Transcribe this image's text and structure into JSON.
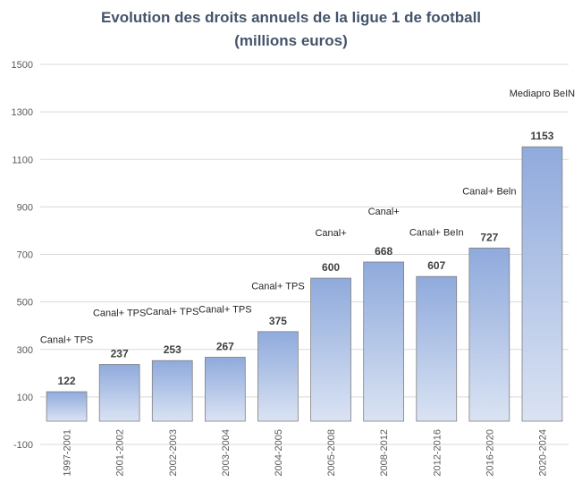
{
  "chart_data": {
    "type": "bar",
    "title_line1": "Evolution des droits annuels de la ligue 1 de football",
    "title_line2": "(millions euros)",
    "categories": [
      "1997-2001",
      "2001-2002",
      "2002-2003",
      "2003-2004",
      "2004-2005",
      "2005-2008",
      "2008-2012",
      "2012-2016",
      "2016-2020",
      "2020-2024"
    ],
    "values": [
      122,
      237,
      253,
      267,
      375,
      600,
      668,
      607,
      727,
      1153
    ],
    "data_labels": [
      "122",
      "237",
      "253",
      "267",
      "375",
      "600",
      "668",
      "607",
      "727",
      "1153"
    ],
    "annotations": [
      {
        "category": "1997-2001",
        "text": "Canal+ TPS",
        "value": 327
      },
      {
        "category": "2001-2002",
        "text": "Canal+ TPS",
        "value": 440
      },
      {
        "category": "2002-2003",
        "text": "Canal+ TPS",
        "value": 446
      },
      {
        "category": "2003-2004",
        "text": "Canal+ TPS",
        "value": 455
      },
      {
        "category": "2004-2005",
        "text": "Canal+ TPS",
        "value": 553
      },
      {
        "category": "2005-2008",
        "text": "Canal+",
        "value": 778
      },
      {
        "category": "2008-2012",
        "text": "Canal+",
        "value": 867
      },
      {
        "category": "2012-2016",
        "text": "Canal+ BeIn",
        "value": 780
      },
      {
        "category": "2016-2020",
        "text": "Canal+ Beln",
        "value": 953
      },
      {
        "category": "2020-2024",
        "text": "Mediapro BeIN",
        "value": 1365
      }
    ],
    "ylim": [
      -100,
      1500
    ],
    "yticks": [
      "-100",
      "100",
      "300",
      "500",
      "700",
      "900",
      "1100",
      "1300",
      "1500"
    ],
    "ytick_values": [
      -100,
      100,
      300,
      500,
      700,
      900,
      1100,
      1300,
      1500
    ],
    "grid": true,
    "legend": "none",
    "colors": {
      "bar_top": "#8faadc",
      "bar_bottom": "#dae3f3",
      "bar_border": "#7f7f7f",
      "grid": "#d9d9d9",
      "title": "#44546a"
    }
  }
}
